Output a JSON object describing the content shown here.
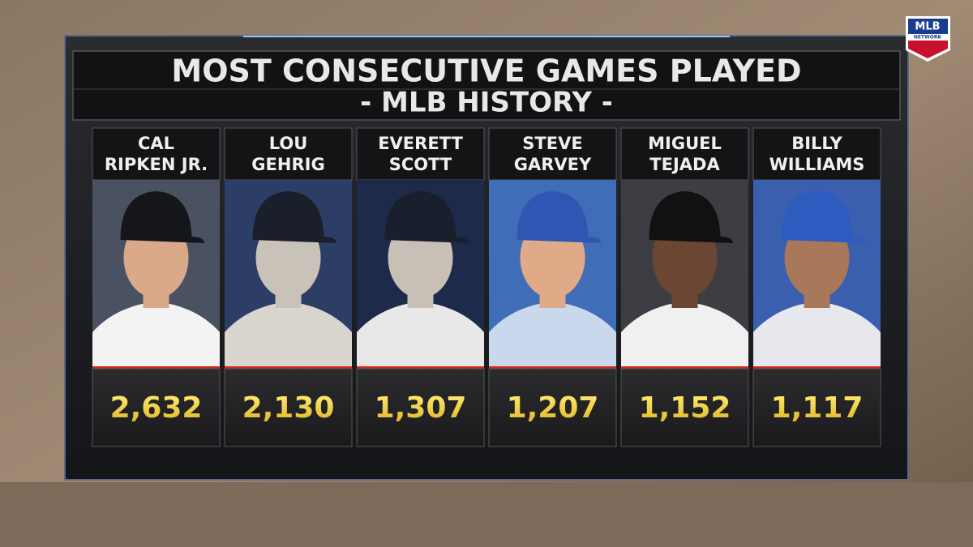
{
  "logo": {
    "text": "MLB",
    "subtext": "NETWORK"
  },
  "header": {
    "title": "MOST CONSECUTIVE GAMES PLAYED",
    "subtitle": "- MLB HISTORY -"
  },
  "players": [
    {
      "name_lines": [
        "CAL",
        "RIPKEN JR."
      ],
      "games": "2,632"
    },
    {
      "name_lines": [
        "LOU",
        "GEHRIG"
      ],
      "games": "2,130"
    },
    {
      "name_lines": [
        "EVERETT",
        "SCOTT"
      ],
      "games": "1,307"
    },
    {
      "name_lines": [
        "STEVE",
        "GARVEY"
      ],
      "games": "1,207"
    },
    {
      "name_lines": [
        "MIGUEL",
        "TEJADA"
      ],
      "games": "1,152"
    },
    {
      "name_lines": [
        "BILLY",
        "WILLIAMS"
      ],
      "games": "1,117"
    }
  ]
}
